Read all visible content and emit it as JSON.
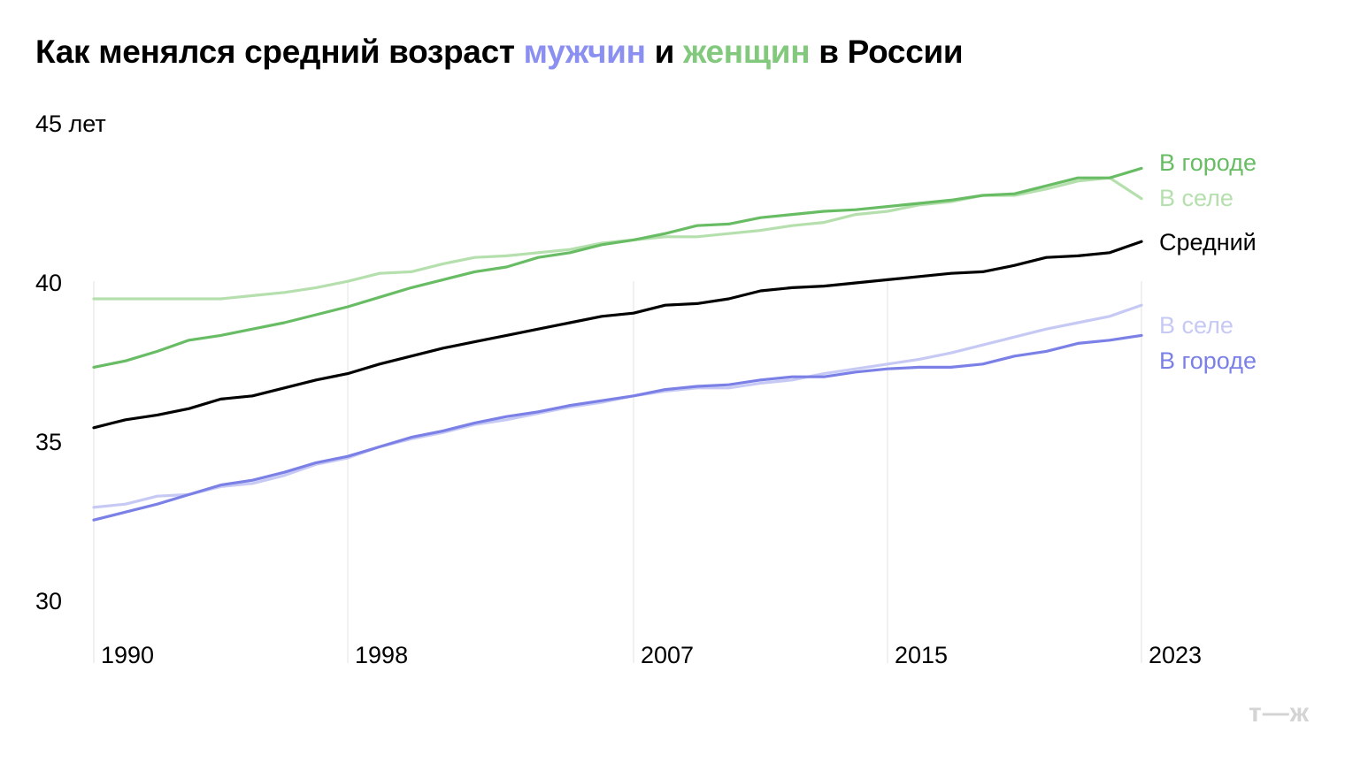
{
  "title": {
    "part1": "Как менялся средний возраст ",
    "part2": "мужчин",
    "part3": " и ",
    "part4": "женщин",
    "part5": " в России"
  },
  "colors": {
    "men_city": "#7b80e6",
    "men_village": "#c7c9f5",
    "women_city": "#68bd64",
    "women_village": "#b5e0ae",
    "average": "#000000",
    "men_title": "#8b8ff0",
    "women_title": "#82c97d",
    "grid": "#e2e2e2",
    "logo": "#d4d4d4"
  },
  "logo": "т—ж",
  "chart_data": {
    "type": "line",
    "title": "Как менялся средний возраст мужчин и женщин в России",
    "ylim": [
      30,
      45
    ],
    "y_ticks": [
      {
        "value": 45,
        "label": "45 лет"
      },
      {
        "value": 40,
        "label": "40"
      },
      {
        "value": 35,
        "label": "35"
      },
      {
        "value": 30,
        "label": "30"
      }
    ],
    "x_ticks": [
      1990,
      1998,
      2007,
      2015,
      2023
    ],
    "x_tick_labels": [
      "1990",
      "1998",
      "2007",
      "2015",
      "2023"
    ],
    "x": [
      1990,
      1991,
      1992,
      1993,
      1994,
      1995,
      1996,
      1997,
      1998,
      1999,
      2000,
      2001,
      2002,
      2003,
      2004,
      2005,
      2006,
      2007,
      2008,
      2009,
      2010,
      2011,
      2012,
      2013,
      2014,
      2015,
      2016,
      2017,
      2018,
      2019,
      2020,
      2021,
      2022,
      2023
    ],
    "grid": "vertical",
    "series": [
      {
        "key": "women_village",
        "name": "В селе",
        "values": [
          39.5,
          39.5,
          39.5,
          39.5,
          39.5,
          39.6,
          39.7,
          39.85,
          40.05,
          40.3,
          40.35,
          40.6,
          40.8,
          40.85,
          40.95,
          41.05,
          41.25,
          41.35,
          41.45,
          41.45,
          41.55,
          41.65,
          41.8,
          41.9,
          42.15,
          42.25,
          42.45,
          42.55,
          42.75,
          42.75,
          42.95,
          43.2,
          43.3,
          42.65
        ]
      },
      {
        "key": "women_city",
        "name": "В городе",
        "values": [
          37.35,
          37.55,
          37.85,
          38.2,
          38.35,
          38.55,
          38.75,
          39.0,
          39.25,
          39.55,
          39.85,
          40.1,
          40.35,
          40.5,
          40.8,
          40.95,
          41.2,
          41.35,
          41.55,
          41.8,
          41.85,
          42.05,
          42.15,
          42.25,
          42.3,
          42.4,
          42.5,
          42.6,
          42.75,
          42.8,
          43.05,
          43.3,
          43.3,
          43.6
        ]
      },
      {
        "key": "average",
        "name": "Средний",
        "values": [
          35.45,
          35.7,
          35.85,
          36.05,
          36.35,
          36.45,
          36.7,
          36.95,
          37.15,
          37.45,
          37.7,
          37.95,
          38.15,
          38.35,
          38.55,
          38.75,
          38.95,
          39.05,
          39.3,
          39.35,
          39.5,
          39.75,
          39.85,
          39.9,
          40.0,
          40.1,
          40.2,
          40.3,
          40.35,
          40.55,
          40.8,
          40.85,
          40.95,
          41.3
        ]
      },
      {
        "key": "men_village",
        "name": "В селе",
        "values": [
          32.95,
          33.05,
          33.3,
          33.35,
          33.6,
          33.7,
          33.95,
          34.3,
          34.5,
          34.85,
          35.1,
          35.3,
          35.55,
          35.7,
          35.9,
          36.1,
          36.25,
          36.45,
          36.6,
          36.7,
          36.7,
          36.85,
          36.95,
          37.15,
          37.3,
          37.45,
          37.6,
          37.8,
          38.05,
          38.3,
          38.55,
          38.75,
          38.95,
          39.3
        ]
      },
      {
        "key": "men_city",
        "name": "В городе",
        "values": [
          32.55,
          32.8,
          33.05,
          33.35,
          33.65,
          33.8,
          34.05,
          34.35,
          34.55,
          34.85,
          35.15,
          35.35,
          35.6,
          35.8,
          35.95,
          36.15,
          36.3,
          36.45,
          36.65,
          36.75,
          36.8,
          36.95,
          37.05,
          37.05,
          37.2,
          37.3,
          37.35,
          37.35,
          37.45,
          37.7,
          37.85,
          38.1,
          38.2,
          38.35
        ]
      }
    ],
    "labels": {
      "women_city": "В городе",
      "women_village": "В селе",
      "average": "Средний",
      "men_village": "В селе",
      "men_city": "В городе"
    }
  }
}
